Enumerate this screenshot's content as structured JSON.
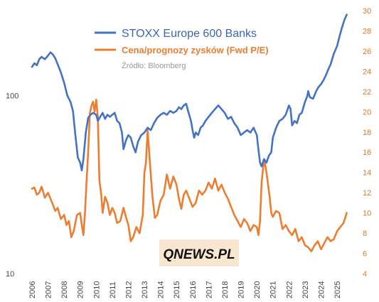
{
  "chart_data": {
    "type": "line",
    "x_axis": {
      "tick_labels": [
        "2006",
        "2007",
        "2008",
        "2009",
        "2010",
        "2011",
        "2012",
        "2013",
        "2014",
        "2015",
        "2016",
        "2017",
        "2018",
        "2019",
        "2020",
        "2021",
        "2022",
        "2023",
        "2024",
        "2025"
      ],
      "range": [
        2006.0,
        2025.75
      ]
    },
    "y_left": {
      "scale": "log",
      "range": [
        10,
        300
      ],
      "tick_labels": [
        "10",
        "100"
      ]
    },
    "y_right": {
      "scale": "linear",
      "range": [
        4,
        30
      ],
      "tick_labels": [
        "4",
        "6",
        "8",
        "10",
        "12",
        "14",
        "16",
        "18",
        "20",
        "22",
        "24",
        "26",
        "28",
        "30"
      ]
    },
    "grid": false,
    "legend": {
      "placement": "top-center",
      "entries": [
        {
          "label": "STOXX Europe 600 Banks",
          "color": "#4472c4"
        },
        {
          "label": "Cena/prognozy zysków (Fwd P/E)",
          "color": "#ed7d31"
        }
      ]
    },
    "source_note": "Źródło: Bloomberg",
    "watermark": "QNEWS.PL",
    "series": [
      {
        "name": "STOXX Europe 600 Banks",
        "axis": "left",
        "color": "#4472c4",
        "x": [
          2006.0,
          2006.15,
          2006.3,
          2006.45,
          2006.6,
          2006.8,
          2007.0,
          2007.15,
          2007.3,
          2007.45,
          2007.6,
          2007.8,
          2008.0,
          2008.2,
          2008.4,
          2008.55,
          2008.7,
          2008.85,
          2009.0,
          2009.1,
          2009.2,
          2009.35,
          2009.5,
          2009.65,
          2009.8,
          2010.0,
          2010.1,
          2010.25,
          2010.4,
          2010.55,
          2010.7,
          2010.85,
          2011.0,
          2011.15,
          2011.3,
          2011.45,
          2011.6,
          2011.7,
          2011.85,
          2012.0,
          2012.15,
          2012.3,
          2012.45,
          2012.6,
          2012.8,
          2013.0,
          2013.2,
          2013.4,
          2013.6,
          2013.8,
          2014.0,
          2014.2,
          2014.4,
          2014.6,
          2014.8,
          2015.0,
          2015.15,
          2015.3,
          2015.45,
          2015.6,
          2015.75,
          2015.9,
          2016.0,
          2016.1,
          2016.2,
          2016.35,
          2016.5,
          2016.65,
          2016.8,
          2017.0,
          2017.2,
          2017.4,
          2017.6,
          2017.8,
          2018.0,
          2018.2,
          2018.4,
          2018.6,
          2018.8,
          2019.0,
          2019.2,
          2019.4,
          2019.6,
          2019.8,
          2020.0,
          2020.1,
          2020.2,
          2020.3,
          2020.45,
          2020.6,
          2020.75,
          2020.9,
          2021.0,
          2021.2,
          2021.4,
          2021.6,
          2021.8,
          2022.0,
          2022.1,
          2022.2,
          2022.35,
          2022.5,
          2022.65,
          2022.8,
          2023.0,
          2023.15,
          2023.2,
          2023.3,
          2023.5,
          2023.7,
          2023.85,
          2024.0,
          2024.15,
          2024.3,
          2024.45,
          2024.6,
          2024.8,
          2025.0,
          2025.15,
          2025.3,
          2025.45,
          2025.6
        ],
        "y": [
          145,
          152,
          148,
          160,
          165,
          160,
          168,
          175,
          170,
          162,
          150,
          135,
          118,
          100,
          92,
          82,
          60,
          45,
          42,
          38,
          44,
          62,
          75,
          78,
          80,
          78,
          72,
          76,
          80,
          74,
          78,
          76,
          78,
          80,
          72,
          70,
          62,
          50,
          56,
          60,
          58,
          52,
          48,
          55,
          60,
          62,
          66,
          64,
          70,
          75,
          78,
          80,
          78,
          82,
          80,
          82,
          86,
          84,
          88,
          90,
          80,
          72,
          64,
          58,
          62,
          60,
          66,
          68,
          72,
          76,
          80,
          84,
          88,
          84,
          80,
          74,
          76,
          70,
          66,
          60,
          62,
          64,
          62,
          66,
          60,
          50,
          42,
          40,
          44,
          42,
          46,
          48,
          58,
          66,
          72,
          74,
          78,
          88,
          84,
          68,
          72,
          70,
          78,
          80,
          92,
          100,
          106,
          98,
          96,
          106,
          112,
          116,
          122,
          130,
          140,
          150,
          172,
          190,
          215,
          240,
          265,
          285
        ]
      },
      {
        "name": "Cena/prognozy zysków (Fwd P/E)",
        "axis": "right",
        "color": "#ed7d31",
        "x": [
          2006.0,
          2006.15,
          2006.3,
          2006.45,
          2006.6,
          2006.8,
          2007.0,
          2007.15,
          2007.3,
          2007.45,
          2007.6,
          2007.8,
          2008.0,
          2008.15,
          2008.3,
          2008.45,
          2008.6,
          2008.8,
          2009.0,
          2009.1,
          2009.2,
          2009.3,
          2009.4,
          2009.5,
          2009.6,
          2009.7,
          2009.8,
          2009.9,
          2010.0,
          2010.1,
          2010.2,
          2010.3,
          2010.4,
          2010.55,
          2010.7,
          2010.85,
          2011.0,
          2011.15,
          2011.3,
          2011.5,
          2011.7,
          2011.85,
          2012.0,
          2012.15,
          2012.3,
          2012.5,
          2012.7,
          2012.9,
          2013.0,
          2013.1,
          2013.2,
          2013.35,
          2013.5,
          2013.65,
          2013.8,
          2014.0,
          2014.2,
          2014.4,
          2014.6,
          2014.8,
          2015.0,
          2015.15,
          2015.3,
          2015.45,
          2015.6,
          2015.8,
          2016.0,
          2016.2,
          2016.4,
          2016.6,
          2016.8,
          2017.0,
          2017.2,
          2017.4,
          2017.6,
          2017.8,
          2018.0,
          2018.2,
          2018.4,
          2018.6,
          2018.8,
          2019.0,
          2019.2,
          2019.4,
          2019.6,
          2019.8,
          2020.0,
          2020.1,
          2020.2,
          2020.3,
          2020.4,
          2020.5,
          2020.6,
          2020.7,
          2020.8,
          2020.9,
          2021.0,
          2021.2,
          2021.4,
          2021.6,
          2021.8,
          2022.0,
          2022.2,
          2022.4,
          2022.6,
          2022.8,
          2023.0,
          2023.2,
          2023.4,
          2023.6,
          2023.8,
          2024.0,
          2024.2,
          2024.4,
          2024.6,
          2024.8,
          2025.0,
          2025.2,
          2025.4,
          2025.6
        ],
        "y": [
          12.4,
          12.5,
          11.8,
          12.0,
          12.6,
          11.5,
          12.0,
          11.4,
          10.8,
          10.2,
          10.5,
          9.4,
          9.8,
          8.8,
          9.2,
          7.6,
          8.2,
          9.8,
          10.0,
          8.8,
          7.8,
          10.0,
          13.2,
          16.0,
          19.8,
          20.6,
          21.0,
          20.0,
          21.2,
          19.5,
          13.2,
          12.0,
          10.0,
          11.6,
          11.0,
          9.8,
          10.5,
          10.0,
          9.0,
          9.2,
          10.5,
          9.6,
          8.8,
          7.2,
          7.6,
          8.6,
          8.0,
          9.8,
          14.0,
          15.0,
          18.2,
          14.8,
          11.6,
          9.5,
          9.8,
          11.2,
          11.8,
          13.8,
          12.4,
          13.6,
          12.8,
          11.4,
          10.4,
          11.8,
          12.2,
          11.4,
          10.6,
          11.0,
          12.2,
          11.8,
          12.2,
          13.0,
          12.4,
          13.4,
          12.2,
          12.8,
          12.0,
          11.4,
          10.6,
          9.8,
          9.2,
          8.6,
          9.4,
          9.0,
          8.2,
          8.8,
          8.6,
          7.8,
          9.2,
          13.0,
          14.6,
          15.0,
          14.0,
          12.8,
          11.6,
          10.0,
          9.6,
          10.2,
          10.0,
          8.4,
          8.8,
          8.2,
          7.8,
          8.4,
          7.2,
          7.6,
          6.8,
          6.6,
          6.2,
          6.8,
          7.2,
          6.4,
          7.0,
          7.6,
          7.2,
          7.4,
          8.2,
          8.6,
          9.0,
          10.0
        ]
      }
    ]
  }
}
